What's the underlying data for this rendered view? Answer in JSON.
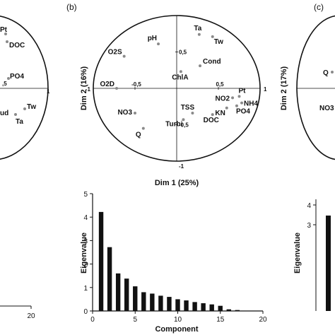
{
  "panels": {
    "a": {
      "label": "",
      "visible_labels": [
        "Pt",
        "DOC",
        "PO4",
        "Tw",
        "Ta",
        "ud"
      ],
      "tick_labels": [
        ",5",
        "1"
      ],
      "bar_tick_label": "20"
    },
    "b": {
      "label": "(b)"
    },
    "c": {
      "label": "(c)",
      "visible_labels": [
        "Q",
        "NO3"
      ],
      "axis_title": "Dim 2 (17%)",
      "tick_labels": [
        "4",
        "3"
      ],
      "bar_ylabel": "Eigenvalue"
    }
  },
  "chart_data": [
    {
      "type": "scatter",
      "subtype": "pca-correlation-circle",
      "xlabel": "Dim 1 (25%)",
      "ylabel": "Dim 2 (16%)",
      "xlim": [
        -1,
        1
      ],
      "ylim": [
        -1,
        1
      ],
      "x_tick_labels": [
        "-1",
        "-0,5",
        "0,5",
        "1"
      ],
      "y_tick_labels": [
        "0,5",
        "-0,5",
        "-1"
      ],
      "points": [
        {
          "name": "Ta",
          "x": 0.27,
          "y": 0.74
        },
        {
          "name": "Tw",
          "x": 0.43,
          "y": 0.71
        },
        {
          "name": "pH",
          "x": -0.22,
          "y": 0.61
        },
        {
          "name": "O2S",
          "x": -0.63,
          "y": 0.44
        },
        {
          "name": "Cond",
          "x": 0.28,
          "y": 0.31
        },
        {
          "name": "ChlA",
          "x": 0.05,
          "y": 0.23
        },
        {
          "name": "O2D",
          "x": -0.72,
          "y": 0.0
        },
        {
          "name": "NO2",
          "x": 0.67,
          "y": -0.13
        },
        {
          "name": "Pt",
          "x": 0.75,
          "y": -0.11
        },
        {
          "name": "NH4",
          "x": 0.78,
          "y": -0.2
        },
        {
          "name": "PO4",
          "x": 0.72,
          "y": -0.24
        },
        {
          "name": "KN",
          "x": 0.6,
          "y": -0.27
        },
        {
          "name": "TSS",
          "x": 0.19,
          "y": -0.34
        },
        {
          "name": "DOC",
          "x": 0.43,
          "y": -0.36
        },
        {
          "name": "NO3",
          "x": -0.5,
          "y": -0.34
        },
        {
          "name": "Turbi",
          "x": 0.08,
          "y": -0.43
        },
        {
          "name": "Q",
          "x": -0.4,
          "y": -0.55
        }
      ]
    },
    {
      "type": "bar",
      "xlabel": "Component",
      "ylabel": "Eigenvalue",
      "xlim": [
        0,
        20
      ],
      "ylim": [
        0,
        5
      ],
      "x_tick_labels": [
        "0",
        "5",
        "10",
        "15",
        "20"
      ],
      "y_tick_labels": [
        "0",
        "1",
        "2",
        "3",
        "4",
        "5"
      ],
      "categories": [
        1,
        2,
        3,
        4,
        5,
        6,
        7,
        8,
        9,
        10,
        11,
        12,
        13,
        14,
        15,
        16,
        17
      ],
      "values": [
        4.22,
        2.72,
        1.6,
        1.38,
        1.05,
        0.8,
        0.74,
        0.65,
        0.6,
        0.5,
        0.45,
        0.38,
        0.33,
        0.28,
        0.22,
        0.07,
        0.04
      ]
    }
  ]
}
